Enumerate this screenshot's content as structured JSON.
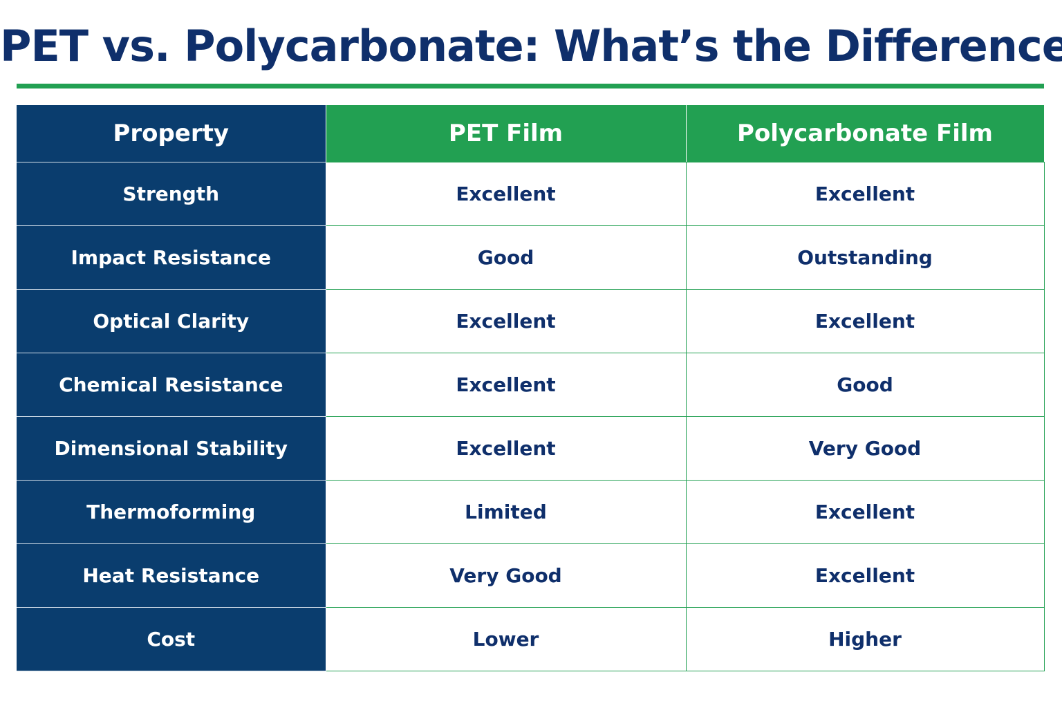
{
  "title": "PET vs. Polycarbonate: What’s the Difference?",
  "colors": {
    "navy": "#0a3d6e",
    "green": "#22a052",
    "title_text": "#0f2f6b",
    "value_text": "#0f2f6b"
  },
  "chart_data": {
    "type": "table",
    "title": "PET vs. Polycarbonate: What’s the Difference?",
    "columns": [
      "Property",
      "PET Film",
      "Polycarbonate Film"
    ],
    "rows": [
      [
        "Strength",
        "Excellent",
        "Excellent"
      ],
      [
        "Impact Resistance",
        "Good",
        "Outstanding"
      ],
      [
        "Optical Clarity",
        "Excellent",
        "Excellent"
      ],
      [
        "Chemical Resistance",
        "Excellent",
        "Good"
      ],
      [
        "Dimensional Stability",
        "Excellent",
        "Very Good"
      ],
      [
        "Thermoforming",
        "Limited",
        "Excellent"
      ],
      [
        "Heat Resistance",
        "Very Good",
        "Excellent"
      ],
      [
        "Cost",
        "Lower",
        "Higher"
      ]
    ]
  }
}
